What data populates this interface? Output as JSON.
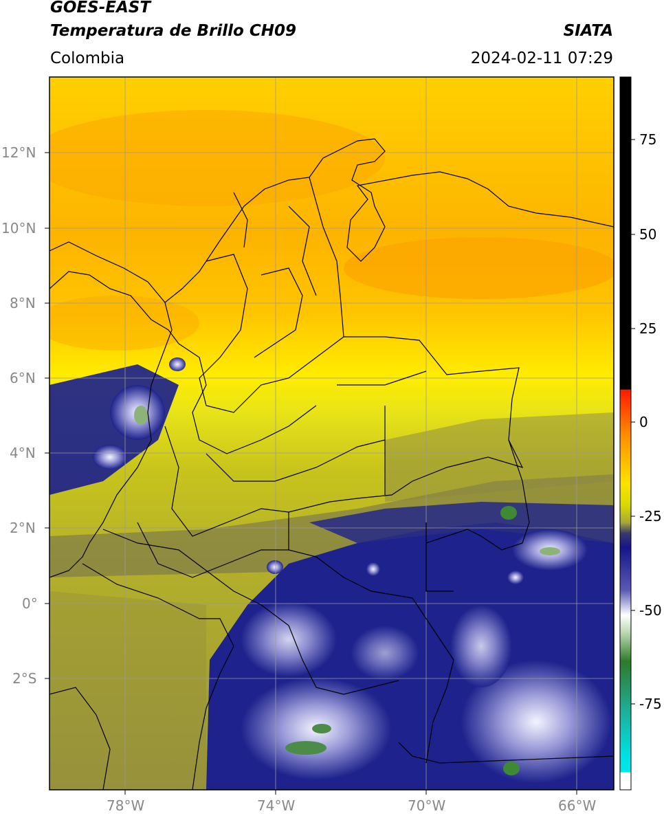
{
  "header": {
    "title_line1": "GOES-EAST",
    "title_line2": "Temperatura de Brillo CH09",
    "brand": "SIATA",
    "region": "Colombia",
    "timestamp": "2024-02-11 07:29"
  },
  "axes": {
    "lat_labels": [
      "12°N",
      "10°N",
      "8°N",
      "6°N",
      "4°N",
      "2°N",
      "0°",
      "2°S"
    ],
    "lon_labels": [
      "78°W",
      "74°W",
      "70°W",
      "66°W"
    ]
  },
  "colorbar": {
    "ticks": [
      "75",
      "50",
      "25",
      "0",
      "-25",
      "-50",
      "-75"
    ],
    "colors": {
      "black": "#000000",
      "red": "#ff2a00",
      "orange": "#ff9c00",
      "yellow": "#ffe800",
      "olive": "#b9b51c",
      "gray": "#6c6a4c",
      "navy": "#1d228c",
      "white": "#ffffff",
      "green": "#3d8a32",
      "teal": "#23c9b4",
      "cyan": "#00e5e5"
    }
  },
  "colors": {
    "warm_orange": "#fdb300",
    "warm_yellow": "#ffe000",
    "olive": "#c6c21a",
    "dark_olive": "#8c8a3a",
    "navy": "#1f2488",
    "cloud_white": "#eef0ff",
    "cloud_green": "#4c8c48"
  }
}
